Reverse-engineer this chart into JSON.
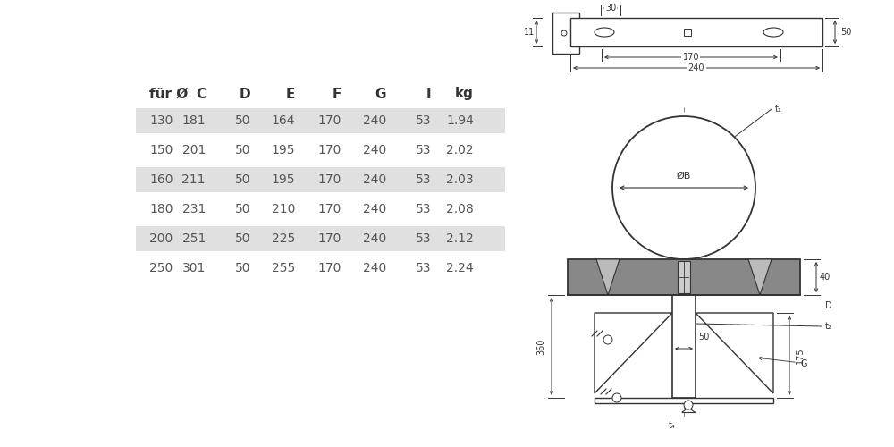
{
  "bg_color": "#ffffff",
  "table_headers": [
    "für Ø",
    "C",
    "D",
    "E",
    "F",
    "G",
    "I",
    "kg"
  ],
  "table_rows": [
    [
      "130",
      "181",
      "50",
      "164",
      "170",
      "240",
      "53",
      "1.94"
    ],
    [
      "150",
      "201",
      "50",
      "195",
      "170",
      "240",
      "53",
      "2.02"
    ],
    [
      "160",
      "211",
      "50",
      "195",
      "170",
      "240",
      "53",
      "2.03"
    ],
    [
      "180",
      "231",
      "50",
      "210",
      "170",
      "240",
      "53",
      "2.08"
    ],
    [
      "200",
      "251",
      "50",
      "225",
      "170",
      "240",
      "53",
      "2.12"
    ],
    [
      "250",
      "301",
      "50",
      "255",
      "170",
      "240",
      "53",
      "2.24"
    ]
  ],
  "shaded_rows": [
    0,
    2,
    4
  ],
  "row_bg_shaded": "#e0e0e0",
  "header_color": "#333333",
  "cell_color": "#555555",
  "cell_fontsize": 10,
  "header_fontsize": 11,
  "dim_color": "#333333",
  "dim_fontsize": 7,
  "line_color": "#333333"
}
